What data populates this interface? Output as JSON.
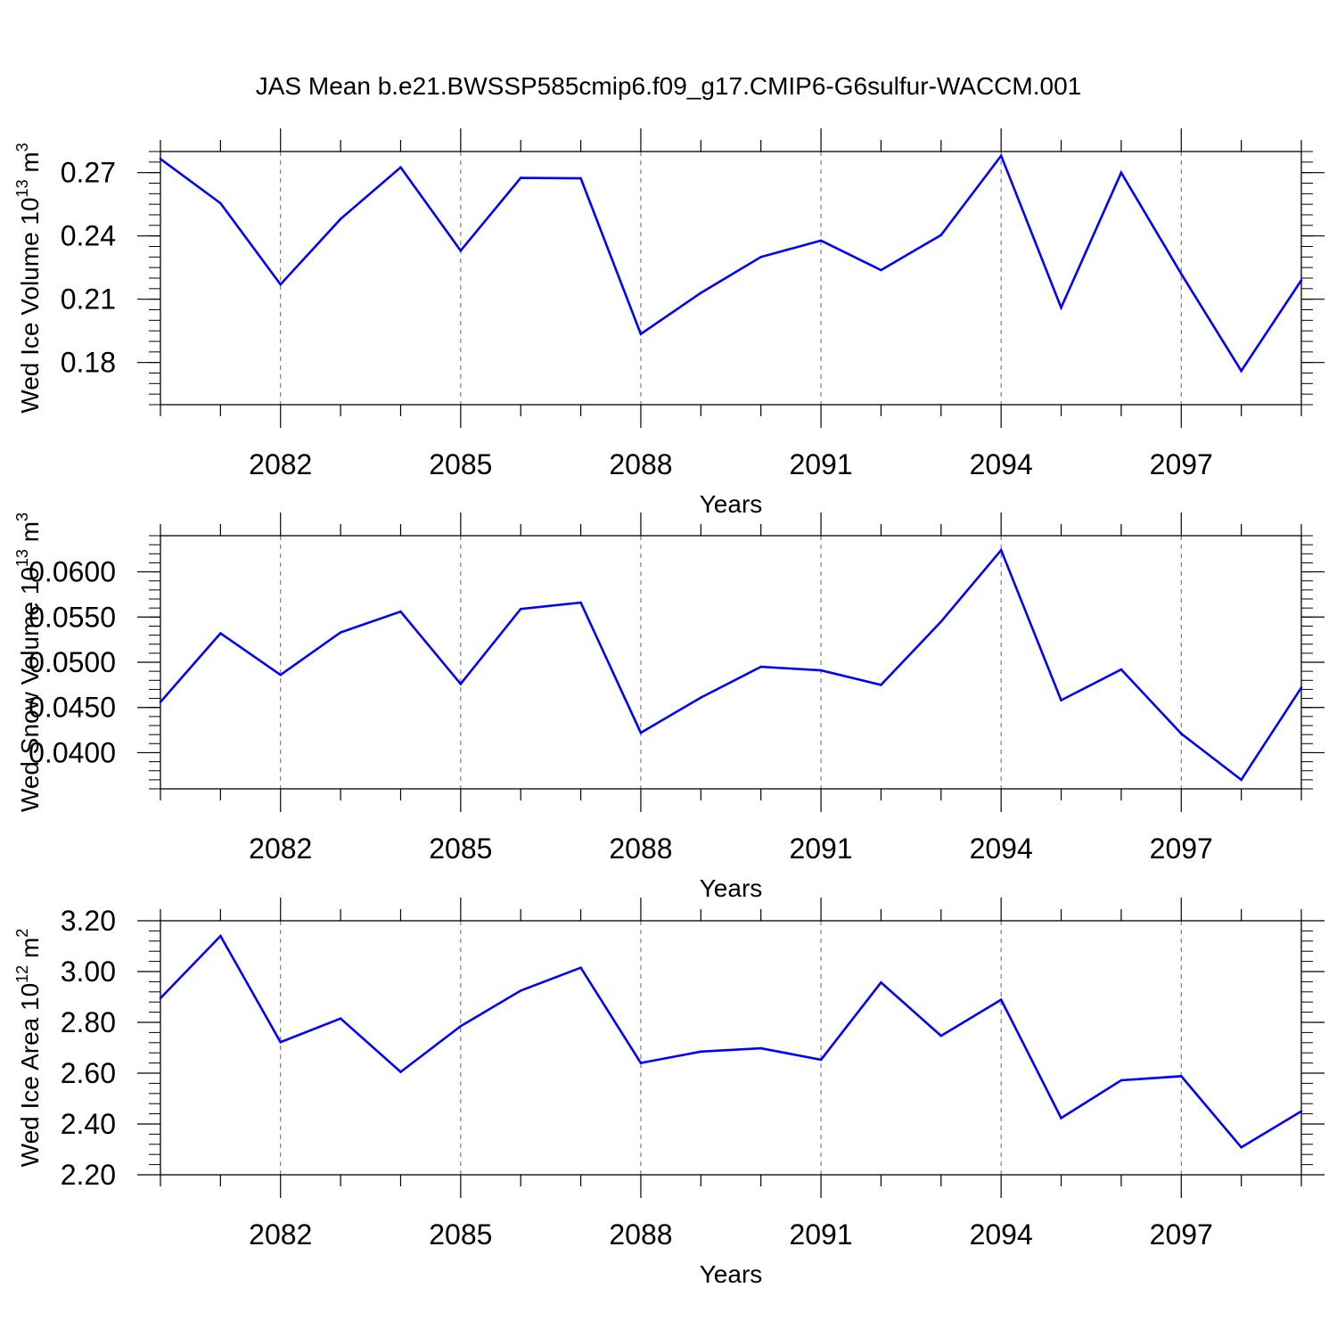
{
  "title": "JAS Mean b.e21.BWSSP585cmip6.f09_g17.CMIP6-G6sulfur-WACCM.001",
  "line_color": "#0000ff",
  "chart_data": [
    {
      "type": "line",
      "ylabel": "Wed Ice Volume 10",
      "ylabel_exp": "13",
      "ylabel_unit": " m",
      "ylabel_unit_exp": "3",
      "xlabel": "Years",
      "xlim": [
        2080,
        2099
      ],
      "ylim": [
        0.16,
        0.28
      ],
      "x_ticks": [
        2082,
        2085,
        2088,
        2091,
        2094,
        2097
      ],
      "x_tick_labels": [
        "2082",
        "2085",
        "2088",
        "2091",
        "2094",
        "2097"
      ],
      "y_ticks": [
        0.18,
        0.21,
        0.24,
        0.27
      ],
      "y_tick_labels": [
        "0.18",
        "0.21",
        "0.24",
        "0.27"
      ],
      "y_minor_step": 0.005,
      "x": [
        2080,
        2081,
        2082,
        2083,
        2084,
        2085,
        2086,
        2087,
        2088,
        2089,
        2090,
        2091,
        2092,
        2093,
        2094,
        2095,
        2096,
        2097,
        2098,
        2099
      ],
      "values": [
        0.2765,
        0.2555,
        0.217,
        0.248,
        0.2725,
        0.233,
        0.2675,
        0.2673,
        0.1935,
        0.213,
        0.23,
        0.2378,
        0.2238,
        0.2404,
        0.278,
        0.206,
        0.27,
        0.222,
        0.176,
        0.219
      ]
    },
    {
      "type": "line",
      "ylabel": "Wed Snow Volume 10",
      "ylabel_exp": "13",
      "ylabel_unit": " m",
      "ylabel_unit_exp": "3",
      "xlabel": "Years",
      "xlim": [
        2080,
        2099
      ],
      "ylim": [
        0.036,
        0.064
      ],
      "x_ticks": [
        2082,
        2085,
        2088,
        2091,
        2094,
        2097
      ],
      "x_tick_labels": [
        "2082",
        "2085",
        "2088",
        "2091",
        "2094",
        "2097"
      ],
      "y_ticks": [
        0.04,
        0.045,
        0.05,
        0.055,
        0.06
      ],
      "y_tick_labels": [
        "0.0400",
        "0.0450",
        "0.0500",
        "0.0550",
        "0.0600"
      ],
      "y_minor_step": 0.001,
      "x": [
        2080,
        2081,
        2082,
        2083,
        2084,
        2085,
        2086,
        2087,
        2088,
        2089,
        2090,
        2091,
        2092,
        2093,
        2094,
        2095,
        2096,
        2097,
        2098,
        2099
      ],
      "values": [
        0.0456,
        0.0532,
        0.0486,
        0.0533,
        0.0556,
        0.0476,
        0.0559,
        0.0566,
        0.0422,
        0.0461,
        0.0495,
        0.0491,
        0.0475,
        0.0545,
        0.0624,
        0.0458,
        0.0492,
        0.0421,
        0.037,
        0.0472
      ]
    },
    {
      "type": "line",
      "ylabel": "Wed Ice Area 10",
      "ylabel_exp": "12",
      "ylabel_unit": " m",
      "ylabel_unit_exp": "2",
      "xlabel": "Years",
      "xlim": [
        2080,
        2099
      ],
      "ylim": [
        2.2,
        3.2
      ],
      "x_ticks": [
        2082,
        2085,
        2088,
        2091,
        2094,
        2097
      ],
      "x_tick_labels": [
        "2082",
        "2085",
        "2088",
        "2091",
        "2094",
        "2097"
      ],
      "y_ticks": [
        2.2,
        2.4,
        2.6,
        2.8,
        3.0,
        3.2
      ],
      "y_tick_labels": [
        "2.20",
        "2.40",
        "2.60",
        "2.80",
        "3.00",
        "3.20"
      ],
      "y_minor_step": 0.04,
      "x": [
        2080,
        2081,
        2082,
        2083,
        2084,
        2085,
        2086,
        2087,
        2088,
        2089,
        2090,
        2091,
        2092,
        2093,
        2094,
        2095,
        2096,
        2097,
        2098,
        2099
      ],
      "values": [
        2.895,
        3.14,
        2.722,
        2.815,
        2.605,
        2.785,
        2.925,
        3.015,
        2.64,
        2.685,
        2.698,
        2.653,
        2.957,
        2.747,
        2.889,
        2.423,
        2.572,
        2.588,
        2.308,
        2.45
      ]
    }
  ]
}
